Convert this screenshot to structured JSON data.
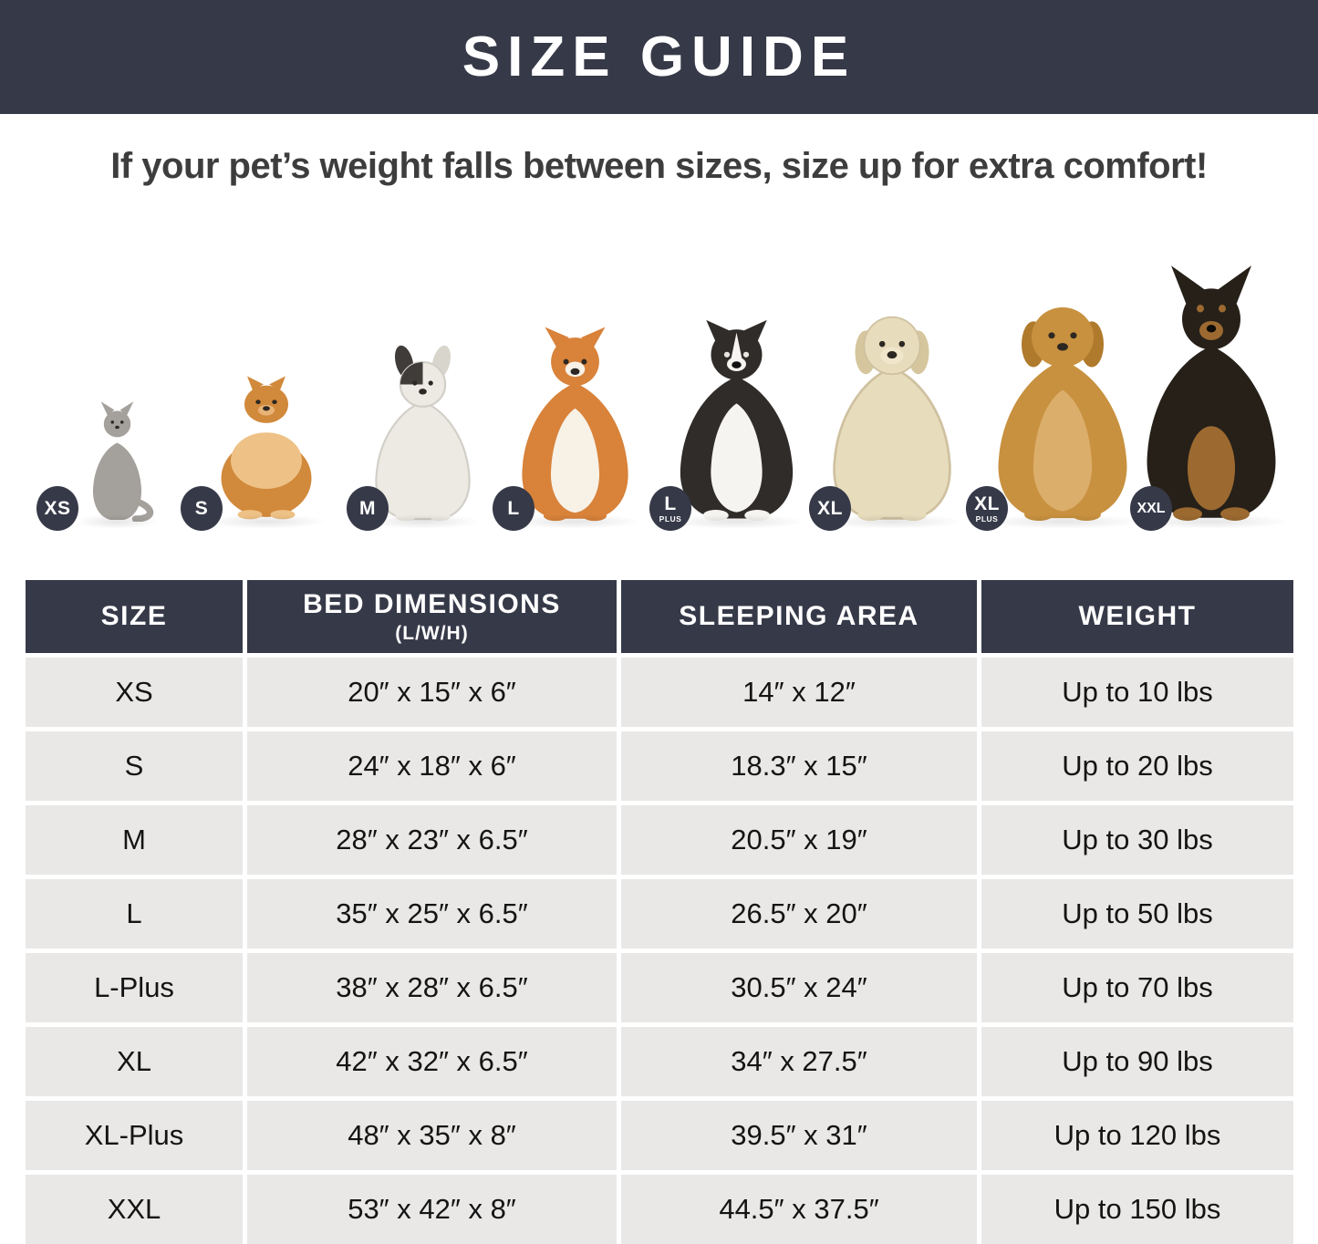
{
  "header": {
    "title": "SIZE GUIDE"
  },
  "subtitle": "If your pet’s weight falls between sizes, size up for extra comfort!",
  "pets": [
    {
      "name": "cat",
      "badge": "XS",
      "badge_sub": ""
    },
    {
      "name": "pomeranian",
      "badge": "S",
      "badge_sub": ""
    },
    {
      "name": "french-bulldog",
      "badge": "M",
      "badge_sub": ""
    },
    {
      "name": "shiba-inu",
      "badge": "L",
      "badge_sub": ""
    },
    {
      "name": "border-collie",
      "badge": "L",
      "badge_sub": "PLUS"
    },
    {
      "name": "labrador",
      "badge": "XL",
      "badge_sub": ""
    },
    {
      "name": "golden-retriever",
      "badge": "XL",
      "badge_sub": "PLUS"
    },
    {
      "name": "doberman",
      "badge": "XXL",
      "badge_sub": ""
    }
  ],
  "table": {
    "columns": [
      {
        "label": "SIZE",
        "sublabel": ""
      },
      {
        "label": "BED DIMENSIONS",
        "sublabel": "(L/W/H)"
      },
      {
        "label": "SLEEPING AREA",
        "sublabel": ""
      },
      {
        "label": "WEIGHT",
        "sublabel": ""
      }
    ],
    "rows": [
      [
        "XS",
        "20″ x 15″ x 6″",
        "14″ x 12″",
        "Up to 10 lbs"
      ],
      [
        "S",
        "24″ x 18″ x 6″",
        "18.3″ x 15″",
        "Up to 20 lbs"
      ],
      [
        "M",
        "28″ x 23″ x 6.5″",
        "20.5″ x 19″",
        "Up to 30 lbs"
      ],
      [
        "L",
        "35″ x 25″ x 6.5″",
        "26.5″ x 20″",
        "Up to 50 lbs"
      ],
      [
        "L-Plus",
        "38″ x 28″ x 6.5″",
        "30.5″ x 24″",
        "Up to 70 lbs"
      ],
      [
        "XL",
        "42″ x 32″ x 6.5″",
        "34″ x 27.5″",
        "Up to 90 lbs"
      ],
      [
        "XL-Plus",
        "48″ x 35″ x 8″",
        "39.5″ x 31″",
        "Up to 120 lbs"
      ],
      [
        "XXL",
        "53″ x 42″ x 8″",
        "44.5″ x 37.5″",
        "Up to 150 lbs"
      ]
    ]
  },
  "colors": {
    "accent": "#363948",
    "row_bg": "#e9e8e7",
    "text": "#141414",
    "title_text": "#ffffff"
  }
}
